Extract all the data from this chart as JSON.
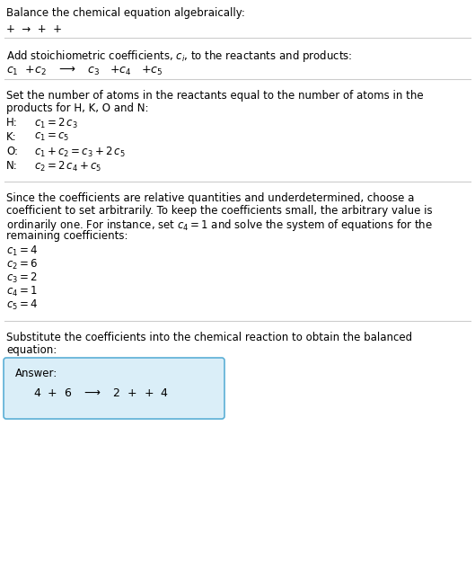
{
  "title": "Balance the chemical equation algebraically:",
  "line1": "+  →  +  +",
  "section2_header": "Add stoichiometric coefficients, $c_i$, to the reactants and products:",
  "section2_eq": "$c_1$  $+c_2$   $\\longrightarrow$   $c_3$   $+c_4$   $+c_5$",
  "section3_header": "Set the number of atoms in the reactants equal to the number of atoms in the\nproducts for H, K, O and N:",
  "atom_labels": [
    "H:",
    "K:",
    "O:",
    "N:"
  ],
  "atom_eqs": [
    "$c_1 = 2\\,c_3$",
    "$c_1 = c_5$",
    "$c_1 + c_2 = c_3 + 2\\,c_5$",
    "$c_2 = 2\\,c_4 + c_5$"
  ],
  "section4_header": "Since the coefficients are relative quantities and underdetermined, choose a\ncoefficient to set arbitrarily. To keep the coefficients small, the arbitrary value is\nordinarily one. For instance, set $c_4 = 1$ and solve the system of equations for the\nremaining coefficients:",
  "sol_lines": [
    "$c_1 = 4$",
    "$c_2 = 6$",
    "$c_3 = 2$",
    "$c_4 = 1$",
    "$c_5 = 4$"
  ],
  "section5_header": "Substitute the coefficients into the chemical reaction to obtain the balanced\nequation:",
  "answer_label": "Answer:",
  "answer_eq": "4  +  6   $\\longrightarrow$   2  +  +  4",
  "bg_color": "#ffffff",
  "text_color": "#000000",
  "answer_box_facecolor": "#daeef8",
  "answer_box_edgecolor": "#5bafd6",
  "divider_color": "#cccccc",
  "fs": 8.5
}
